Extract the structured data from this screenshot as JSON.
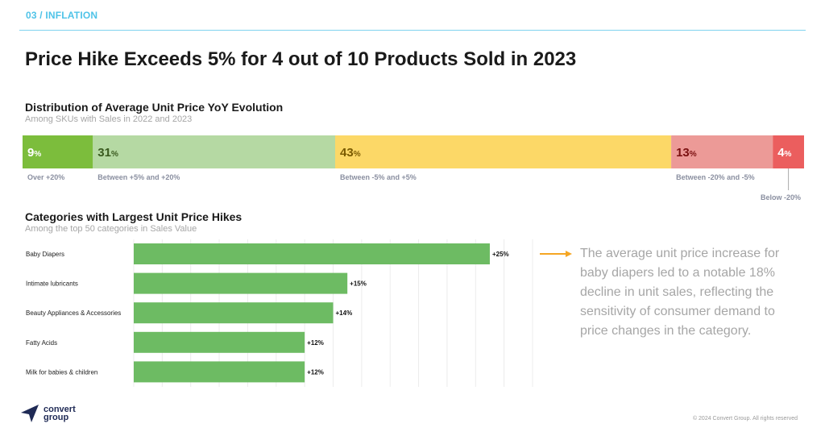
{
  "header": {
    "section_tag": "03 / INFLATION",
    "title": "Price Hike Exceeds 5% for 4 out of 10 Products Sold in 2023"
  },
  "distribution": {
    "title": "Distribution of Average Unit Price YoY Evolution",
    "subtitle": "Among SKUs with Sales in 2022 and 2023"
  },
  "categories_chart": {
    "title": "Categories with Largest Unit Price Hikes",
    "subtitle": "Among the top 50 categories in Sales Value"
  },
  "callout": {
    "text": "The average unit price increase for baby diapers led to a notable 18% decline in unit sales, reflecting the sensitivity of consumer demand to price changes in the category.",
    "arrow_color": "#f5a623"
  },
  "footer": {
    "logo_line1": "convert",
    "logo_line2": "group",
    "copyright": "© 2024 Convert Group. All rights reserved"
  },
  "chart_data": [
    {
      "type": "bar",
      "orientation": "stacked-horizontal",
      "title": "Distribution of Average Unit Price YoY Evolution",
      "subtitle": "Among SKUs with Sales in 2022 and 2023",
      "unit": "%",
      "segments": [
        {
          "label": "Over +20%",
          "value": 9,
          "color": "#7cbd3c",
          "text_color": "#ffffff"
        },
        {
          "label": "Between +5% and +20%",
          "value": 31,
          "color": "#b5d9a3",
          "text_color": "#3a5a1f"
        },
        {
          "label": "Between -5% and +5%",
          "value": 43,
          "color": "#fcd867",
          "text_color": "#7a5a00"
        },
        {
          "label": "Between -20% and -5%",
          "value": 13,
          "color": "#ec9a97",
          "text_color": "#7a1010"
        },
        {
          "label": "Below -20%",
          "value": 4,
          "color": "#eb5e5e",
          "text_color": "#ffffff"
        }
      ]
    },
    {
      "type": "bar",
      "orientation": "horizontal",
      "title": "Categories with Largest Unit Price Hikes",
      "subtitle": "Among the top 50 categories in Sales Value",
      "categories": [
        "Baby Diapers",
        "Intimate lubricants",
        "Beauty Appliances & Accessories",
        "Fatty Acids",
        "Milk for babies & children"
      ],
      "values": [
        25,
        15,
        14,
        12,
        12
      ],
      "value_labels": [
        "+25%",
        "+15%",
        "+14%",
        "+12%",
        "+12%"
      ],
      "xlim": [
        0,
        28
      ],
      "color": "#6dbb63",
      "grid": true
    }
  ]
}
